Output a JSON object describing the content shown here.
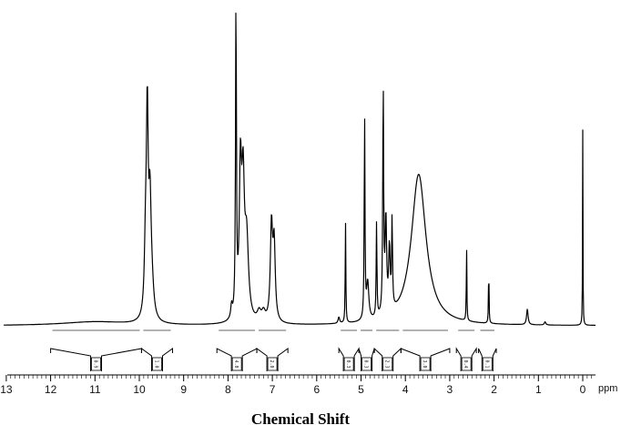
{
  "chart_data": {
    "type": "line",
    "title": "",
    "xlabel": "Chemical Shift",
    "x_unit": "ppm",
    "xlim": [
      13.5,
      -0.8
    ],
    "x_reversed": true,
    "x_ticks": [
      13,
      12,
      11,
      10,
      9,
      8,
      7,
      6,
      5,
      4,
      3,
      2,
      1,
      0
    ],
    "y_axis_visible": false,
    "grid": false,
    "legend": "none",
    "line_color": "#000000",
    "peaks": [
      {
        "ppm": 11.0,
        "height": 0.012,
        "width": 0.9,
        "kind": "lorentz"
      },
      {
        "ppm": 9.82,
        "height": 0.62,
        "width": 0.025,
        "kind": "lorentz"
      },
      {
        "ppm": 9.76,
        "height": 0.32,
        "width": 0.03,
        "kind": "lorentz"
      },
      {
        "ppm": 9.86,
        "height": 0.2,
        "width": 0.03,
        "kind": "lorentz"
      },
      {
        "ppm": 9.72,
        "height": 0.1,
        "width": 0.05,
        "kind": "lorentz"
      },
      {
        "ppm": 7.82,
        "height": 1.0,
        "width": 0.012,
        "kind": "lorentz"
      },
      {
        "ppm": 7.72,
        "height": 0.45,
        "width": 0.03,
        "kind": "lorentz"
      },
      {
        "ppm": 7.66,
        "height": 0.4,
        "width": 0.035,
        "kind": "lorentz"
      },
      {
        "ppm": 7.58,
        "height": 0.25,
        "width": 0.05,
        "kind": "lorentz"
      },
      {
        "ppm": 7.92,
        "height": 0.04,
        "width": 0.02,
        "kind": "lorentz"
      },
      {
        "ppm": 7.3,
        "height": 0.03,
        "width": 0.05,
        "kind": "lorentz"
      },
      {
        "ppm": 7.2,
        "height": 0.03,
        "width": 0.05,
        "kind": "lorentz"
      },
      {
        "ppm": 7.02,
        "height": 0.3,
        "width": 0.03,
        "kind": "lorentz"
      },
      {
        "ppm": 6.96,
        "height": 0.24,
        "width": 0.03,
        "kind": "lorentz"
      },
      {
        "ppm": 5.35,
        "height": 0.32,
        "width": 0.008,
        "kind": "lorentz"
      },
      {
        "ppm": 5.5,
        "height": 0.02,
        "width": 0.02,
        "kind": "lorentz"
      },
      {
        "ppm": 4.92,
        "height": 0.65,
        "width": 0.01,
        "kind": "lorentz"
      },
      {
        "ppm": 4.85,
        "height": 0.12,
        "width": 0.03,
        "kind": "lorentz"
      },
      {
        "ppm": 4.65,
        "height": 0.3,
        "width": 0.01,
        "kind": "lorentz"
      },
      {
        "ppm": 4.5,
        "height": 0.72,
        "width": 0.012,
        "kind": "lorentz"
      },
      {
        "ppm": 4.44,
        "height": 0.3,
        "width": 0.02,
        "kind": "lorentz"
      },
      {
        "ppm": 4.36,
        "height": 0.2,
        "width": 0.02,
        "kind": "lorentz"
      },
      {
        "ppm": 4.3,
        "height": 0.28,
        "width": 0.012,
        "kind": "lorentz"
      },
      {
        "ppm": 3.7,
        "height": 0.48,
        "width": 0.2,
        "kind": "lorentz"
      },
      {
        "ppm": 2.62,
        "height": 0.24,
        "width": 0.007,
        "kind": "lorentz"
      },
      {
        "ppm": 2.12,
        "height": 0.19,
        "width": 0.007,
        "kind": "lorentz"
      },
      {
        "ppm": 1.25,
        "height": 0.05,
        "width": 0.02,
        "kind": "lorentz"
      },
      {
        "ppm": 0.85,
        "height": 0.01,
        "width": 0.02,
        "kind": "lorentz"
      },
      {
        "ppm": 0.0,
        "height": 0.62,
        "width": 0.005,
        "kind": "lorentz"
      }
    ],
    "integration_brackets": [
      {
        "from": 12.0,
        "to": 9.95,
        "label": "0.9"
      },
      {
        "from": 9.95,
        "to": 9.25,
        "label": "1.0"
      },
      {
        "from": 8.25,
        "to": 7.35,
        "label": "4.0"
      },
      {
        "from": 7.35,
        "to": 6.65,
        "label": "2.0"
      },
      {
        "from": 5.5,
        "to": 5.05,
        "label": "0.3"
      },
      {
        "from": 5.05,
        "to": 4.7,
        "label": "0.3"
      },
      {
        "from": 4.7,
        "to": 4.1,
        "label": "2.3"
      },
      {
        "from": 4.1,
        "to": 3.0,
        "label": "3.0"
      },
      {
        "from": 2.85,
        "to": 2.4,
        "label": "0.4"
      },
      {
        "from": 2.35,
        "to": 1.95,
        "label": "0.1"
      }
    ]
  }
}
